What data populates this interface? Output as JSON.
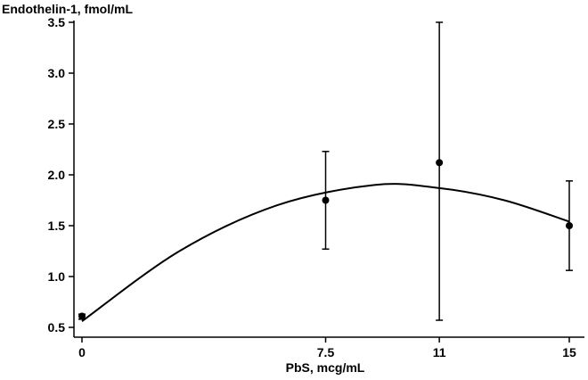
{
  "chart_data": {
    "type": "scatter",
    "ylabel": "Endothelin-1, fmol/mL",
    "xlabel": "PbS, mcg/mL",
    "xlim": [
      0,
      15
    ],
    "ylim": [
      0.5,
      3.5
    ],
    "x_ticks": [
      0,
      7.5,
      11,
      15
    ],
    "x_tick_labels": [
      "0",
      "7.5",
      "11",
      "15"
    ],
    "y_ticks": [
      0.5,
      1.0,
      1.5,
      2.0,
      2.5,
      3.0,
      3.5
    ],
    "y_tick_labels": [
      "0.5",
      "1.0",
      "1.5",
      "2.0",
      "2.5",
      "3.0",
      "3.5"
    ],
    "grid": false,
    "series": [
      {
        "points": [
          {
            "x": 0,
            "y": 0.61,
            "err_low": 0.58,
            "err_high": 0.63
          },
          {
            "x": 7.5,
            "y": 1.75,
            "err_low": 1.27,
            "err_high": 2.23
          },
          {
            "x": 11,
            "y": 2.12,
            "err_low": 0.57,
            "err_high": 3.5
          },
          {
            "x": 15,
            "y": 1.5,
            "err_low": 1.06,
            "err_high": 1.94
          }
        ]
      }
    ],
    "fit_curve": {
      "type": "quadratic",
      "points": [
        {
          "x": 0,
          "y": 0.56
        },
        {
          "x": 3,
          "y": 1.25
        },
        {
          "x": 6,
          "y": 1.7
        },
        {
          "x": 9,
          "y": 1.9
        },
        {
          "x": 11,
          "y": 1.87
        },
        {
          "x": 13,
          "y": 1.75
        },
        {
          "x": 15,
          "y": 1.54
        }
      ]
    }
  }
}
